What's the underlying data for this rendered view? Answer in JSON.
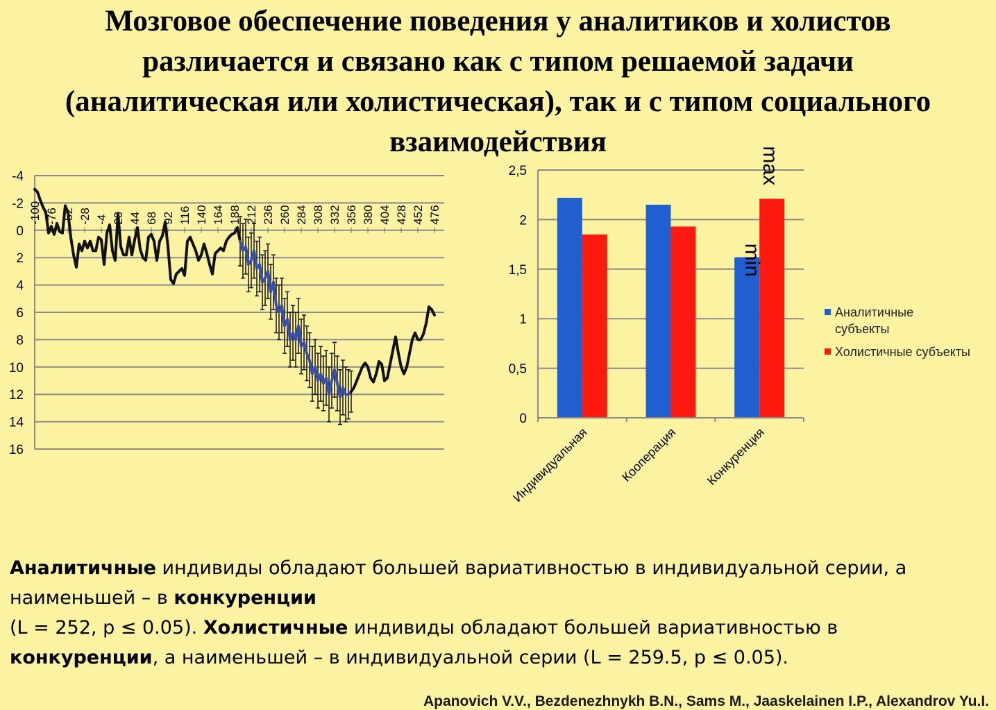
{
  "slide": {
    "title_lines": [
      "Мозговое обеспечение поведения у аналитиков и холистов",
      "различается и связано как с типом решаемой задачи",
      "(аналитическая или холистическая), так и с типом социального",
      "взаимодействия"
    ],
    "description": {
      "line1": [
        {
          "text": "Аналитичные",
          "bold": true
        },
        {
          "text": " индивиды обладают большей вариативностью в индивидуальной серии, а",
          "bold": false
        }
      ],
      "line2": [
        {
          "text": "наименьшей – в ",
          "bold": false
        },
        {
          "text": "конкуренции",
          "bold": true
        }
      ],
      "line3": [
        {
          "text": "(L = 252, p ≤ 0.05). ",
          "bold": false
        },
        {
          "text": "Холистичные",
          "bold": true
        },
        {
          "text": " индивиды обладают большей вариативностью в",
          "bold": false
        }
      ],
      "line4": [
        {
          "text": "конкуренции",
          "bold": true
        },
        {
          "text": ", а наименьшей – в индивидуальной серии (L = 259.5, p ≤ 0.05).",
          "bold": false
        }
      ]
    },
    "authors": "Apanovich V.V., Bezdenezhnykh B.N., Sams M., Jaaskelainen I.P., Alexandrov Yu.I."
  },
  "chart_data": [
    {
      "type": "line",
      "title": "",
      "xlabel": "",
      "ylabel": "",
      "ylim": [
        16,
        -4
      ],
      "y_inverted": true,
      "yticks": [
        -4,
        -2,
        0,
        2,
        4,
        6,
        8,
        10,
        12,
        14,
        16
      ],
      "xtick_labels": [
        "-100",
        "-76",
        "-52",
        "-28",
        "-4",
        "20",
        "44",
        "68",
        "92",
        "116",
        "140",
        "164",
        "188",
        "212",
        "236",
        "260",
        "284",
        "308",
        "332",
        "356",
        "380",
        "404",
        "428",
        "452",
        "476"
      ],
      "xlim": [
        -100,
        490
      ],
      "grid": true,
      "series": [
        {
          "color": "#111111",
          "x": [
            -100,
            -96,
            -92,
            -88,
            -84,
            -80,
            -76,
            -72,
            -68,
            -64,
            -60,
            -56,
            -52,
            -48,
            -44,
            -40,
            -36,
            -32,
            -28,
            -24,
            -20,
            -16,
            -12,
            -8,
            -4,
            0,
            4,
            8,
            12,
            16,
            20,
            24,
            28,
            32,
            36,
            40,
            44,
            48,
            52,
            56,
            60,
            64,
            68,
            72,
            76,
            80,
            84,
            88,
            92,
            96,
            100,
            104,
            108,
            112,
            116,
            120,
            124,
            128,
            132,
            136,
            140,
            144,
            148,
            152,
            156,
            160,
            164,
            168,
            172,
            176,
            180,
            184,
            188,
            192,
            196
          ],
          "y": [
            -3,
            -2.8,
            -2.2,
            -1.7,
            -1.3,
            0.2,
            -0.3,
            0.3,
            -0.5,
            0.1,
            0.2,
            -1.8,
            -1.3,
            0.5,
            1.8,
            2.7,
            1.0,
            1.5,
            0.8,
            1.3,
            0.8,
            1.5,
            1.5,
            0.5,
            0.7,
            2.5,
            0.2,
            -0.4,
            1.5,
            2.2,
            -1.2,
            1.2,
            1.8,
            1.8,
            0.5,
            1.8,
            0.7,
            -0.2,
            1.4,
            2.0,
            2.2,
            0.5,
            0.3,
            0.8,
            2.2,
            0.8,
            0.4,
            -0.6,
            1.2,
            3.6,
            3.9,
            3.2,
            3.0,
            2.8,
            3.3,
            0.8,
            0.5,
            1.0,
            1.5,
            2.2,
            1.8,
            1.0,
            1.7,
            2.5,
            3.2,
            1.7,
            1.5,
            1.3,
            1.5,
            0.8,
            0.5,
            0.3,
            0.2,
            -0.2,
            0.8
          ]
        },
        {
          "color": "#3a4fa8",
          "error_bars": true,
          "x": [
            196,
            200,
            204,
            208,
            212,
            216,
            220,
            224,
            228,
            232,
            236,
            240,
            244,
            248,
            252,
            256,
            260,
            264,
            268,
            272,
            276,
            280,
            284,
            288,
            292,
            296,
            300,
            304,
            308,
            312,
            316,
            320,
            324,
            328,
            332,
            336,
            340,
            344,
            348,
            352,
            356
          ],
          "y": [
            0.8,
            1.5,
            1.2,
            2.5,
            2.2,
            1.5,
            2.8,
            2.5,
            3.8,
            3.5,
            3.0,
            4.5,
            3.8,
            5.5,
            6.0,
            5.5,
            7.0,
            6.5,
            8.0,
            7.5,
            8.0,
            7.0,
            8.5,
            8.2,
            9.0,
            9.5,
            10.5,
            10.0,
            11.0,
            10.5,
            11.2,
            10.8,
            12.0,
            11.0,
            10.2,
            11.2,
            12.2,
            11.5,
            12.0,
            12.0,
            11.8
          ],
          "err": [
            1.8,
            2.0,
            2.0,
            2.0,
            2.0,
            2.0,
            2.0,
            2.0,
            2.0,
            2.0,
            2.0,
            2.0,
            2.0,
            2.0,
            2.0,
            2.0,
            2.0,
            2.0,
            2.0,
            2.0,
            2.0,
            2.0,
            2.0,
            2.0,
            2.0,
            2.0,
            2.0,
            2.0,
            2.0,
            2.0,
            2.0,
            2.0,
            2.0,
            2.0,
            2.0,
            2.0,
            2.0,
            2.0,
            2.0,
            1.8,
            1.5
          ]
        },
        {
          "color": "#111111",
          "x": [
            356,
            360,
            364,
            368,
            372,
            376,
            380,
            384,
            388,
            392,
            396,
            400,
            404,
            408,
            412,
            416,
            420,
            424,
            428,
            432,
            436,
            440,
            444,
            448,
            452,
            456,
            460,
            464,
            468,
            472,
            476
          ],
          "y": [
            11.8,
            11.5,
            11.0,
            10.5,
            10.0,
            9.7,
            10.0,
            10.8,
            11.1,
            10.5,
            9.6,
            9.8,
            11.0,
            10.8,
            9.8,
            8.8,
            7.8,
            9.0,
            10.0,
            10.5,
            10.0,
            9.0,
            8.0,
            7.5,
            8.0,
            8.0,
            7.6,
            6.8,
            5.6,
            5.8,
            6.2
          ]
        }
      ]
    },
    {
      "type": "bar",
      "categories": [
        "Индивидуальная",
        "Кооперация",
        "Конкуренция"
      ],
      "series": [
        {
          "name": "Аналитичные субъекты",
          "values": [
            2.22,
            2.15,
            1.62
          ],
          "color": "#1f5fd0"
        },
        {
          "name": "Холистичные субъекты",
          "values": [
            1.85,
            1.93,
            2.21
          ],
          "color": "#ff1a0f"
        }
      ],
      "yticks": [
        "0",
        "0,5",
        "1",
        "1,5",
        "2",
        "2,5"
      ],
      "ylim": [
        0,
        2.5
      ],
      "grid": true,
      "legend": "right",
      "annotations": [
        "min",
        "max"
      ]
    }
  ]
}
